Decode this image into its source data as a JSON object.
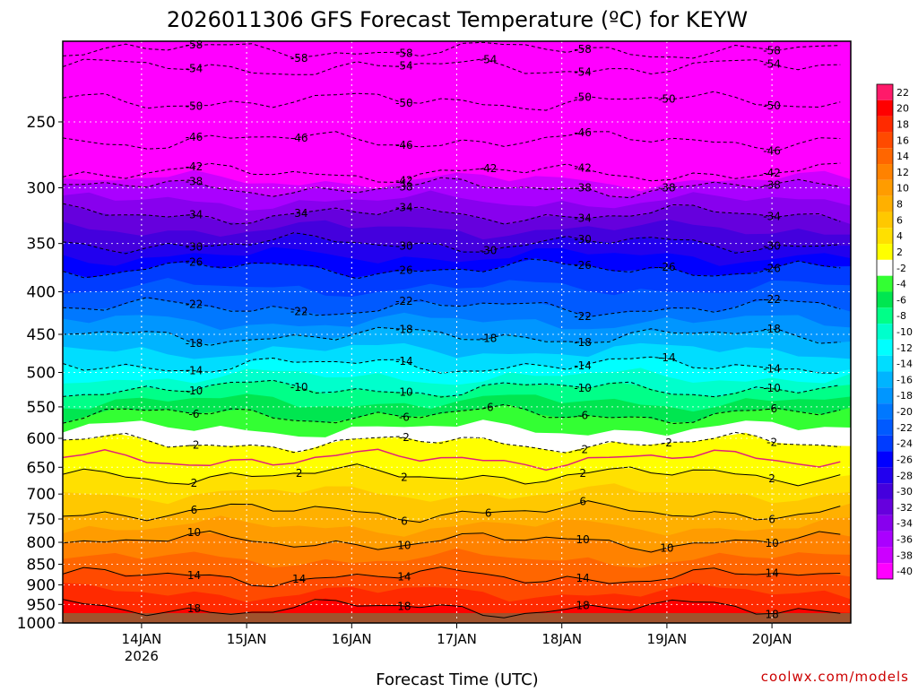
{
  "chart_data": {
    "type": "heatmap",
    "title": "2026011306 GFS Forecast Temperature (ºC) for KEYW",
    "xlabel": "Forecast Time (UTC)",
    "ylabel": "",
    "x_ticks": [
      "14JAN",
      "15JAN",
      "16JAN",
      "17JAN",
      "18JAN",
      "19JAN",
      "20JAN"
    ],
    "x_subtick": "2026",
    "y_ticks": [
      250,
      300,
      350,
      400,
      450,
      500,
      550,
      600,
      650,
      700,
      750,
      800,
      850,
      900,
      950,
      1000
    ],
    "ylim": [
      1000,
      200
    ],
    "y_scale": "log",
    "colorbar_levels": [
      22,
      20,
      18,
      16,
      14,
      12,
      10,
      8,
      6,
      4,
      2,
      -2,
      -4,
      -6,
      -8,
      -10,
      -12,
      -14,
      -16,
      -18,
      -20,
      -22,
      -24,
      -26,
      -28,
      -30,
      -32,
      -34,
      -36,
      -38,
      -40
    ],
    "colorbar_colors": [
      "#ff1a6a",
      "#ff0000",
      "#ff2a00",
      "#ff4a00",
      "#ff6600",
      "#ff8200",
      "#ff9c00",
      "#ffb000",
      "#ffc800",
      "#ffe000",
      "#ffff00",
      "#ffffff",
      "#33ff33",
      "#00e650",
      "#00ff88",
      "#00ffcc",
      "#00ffff",
      "#00ddff",
      "#00b4ff",
      "#0096ff",
      "#0078ff",
      "#005aff",
      "#003cff",
      "#0000ff",
      "#2200ee",
      "#4400dd",
      "#6600dd",
      "#8800ee",
      "#aa00ff",
      "#cc00ff",
      "#ff00ff"
    ],
    "isotherm_labels": [
      {
        "t": -58,
        "p": 205
      },
      {
        "t": -54,
        "p": 215
      },
      {
        "t": -50,
        "p": 236
      },
      {
        "t": -46,
        "p": 263
      },
      {
        "t": -42,
        "p": 288
      },
      {
        "t": -38,
        "p": 300
      },
      {
        "t": -34,
        "p": 323
      },
      {
        "t": -30,
        "p": 350
      },
      {
        "t": -26,
        "p": 375
      },
      {
        "t": -22,
        "p": 418
      },
      {
        "t": -18,
        "p": 452
      },
      {
        "t": -14,
        "p": 490
      },
      {
        "t": -10,
        "p": 523
      },
      {
        "t": -6,
        "p": 562
      },
      {
        "t": -2,
        "p": 608
      },
      {
        "t": 2,
        "p": 664
      },
      {
        "t": 6,
        "p": 735
      },
      {
        "t": 10,
        "p": 798
      },
      {
        "t": 14,
        "p": 880
      },
      {
        "t": 18,
        "p": 960
      }
    ],
    "label_positions_days": [
      0.5,
      1.5,
      2.5,
      3.3,
      4.2,
      5.0,
      6.0
    ]
  },
  "credit": "coolwx.com/models"
}
